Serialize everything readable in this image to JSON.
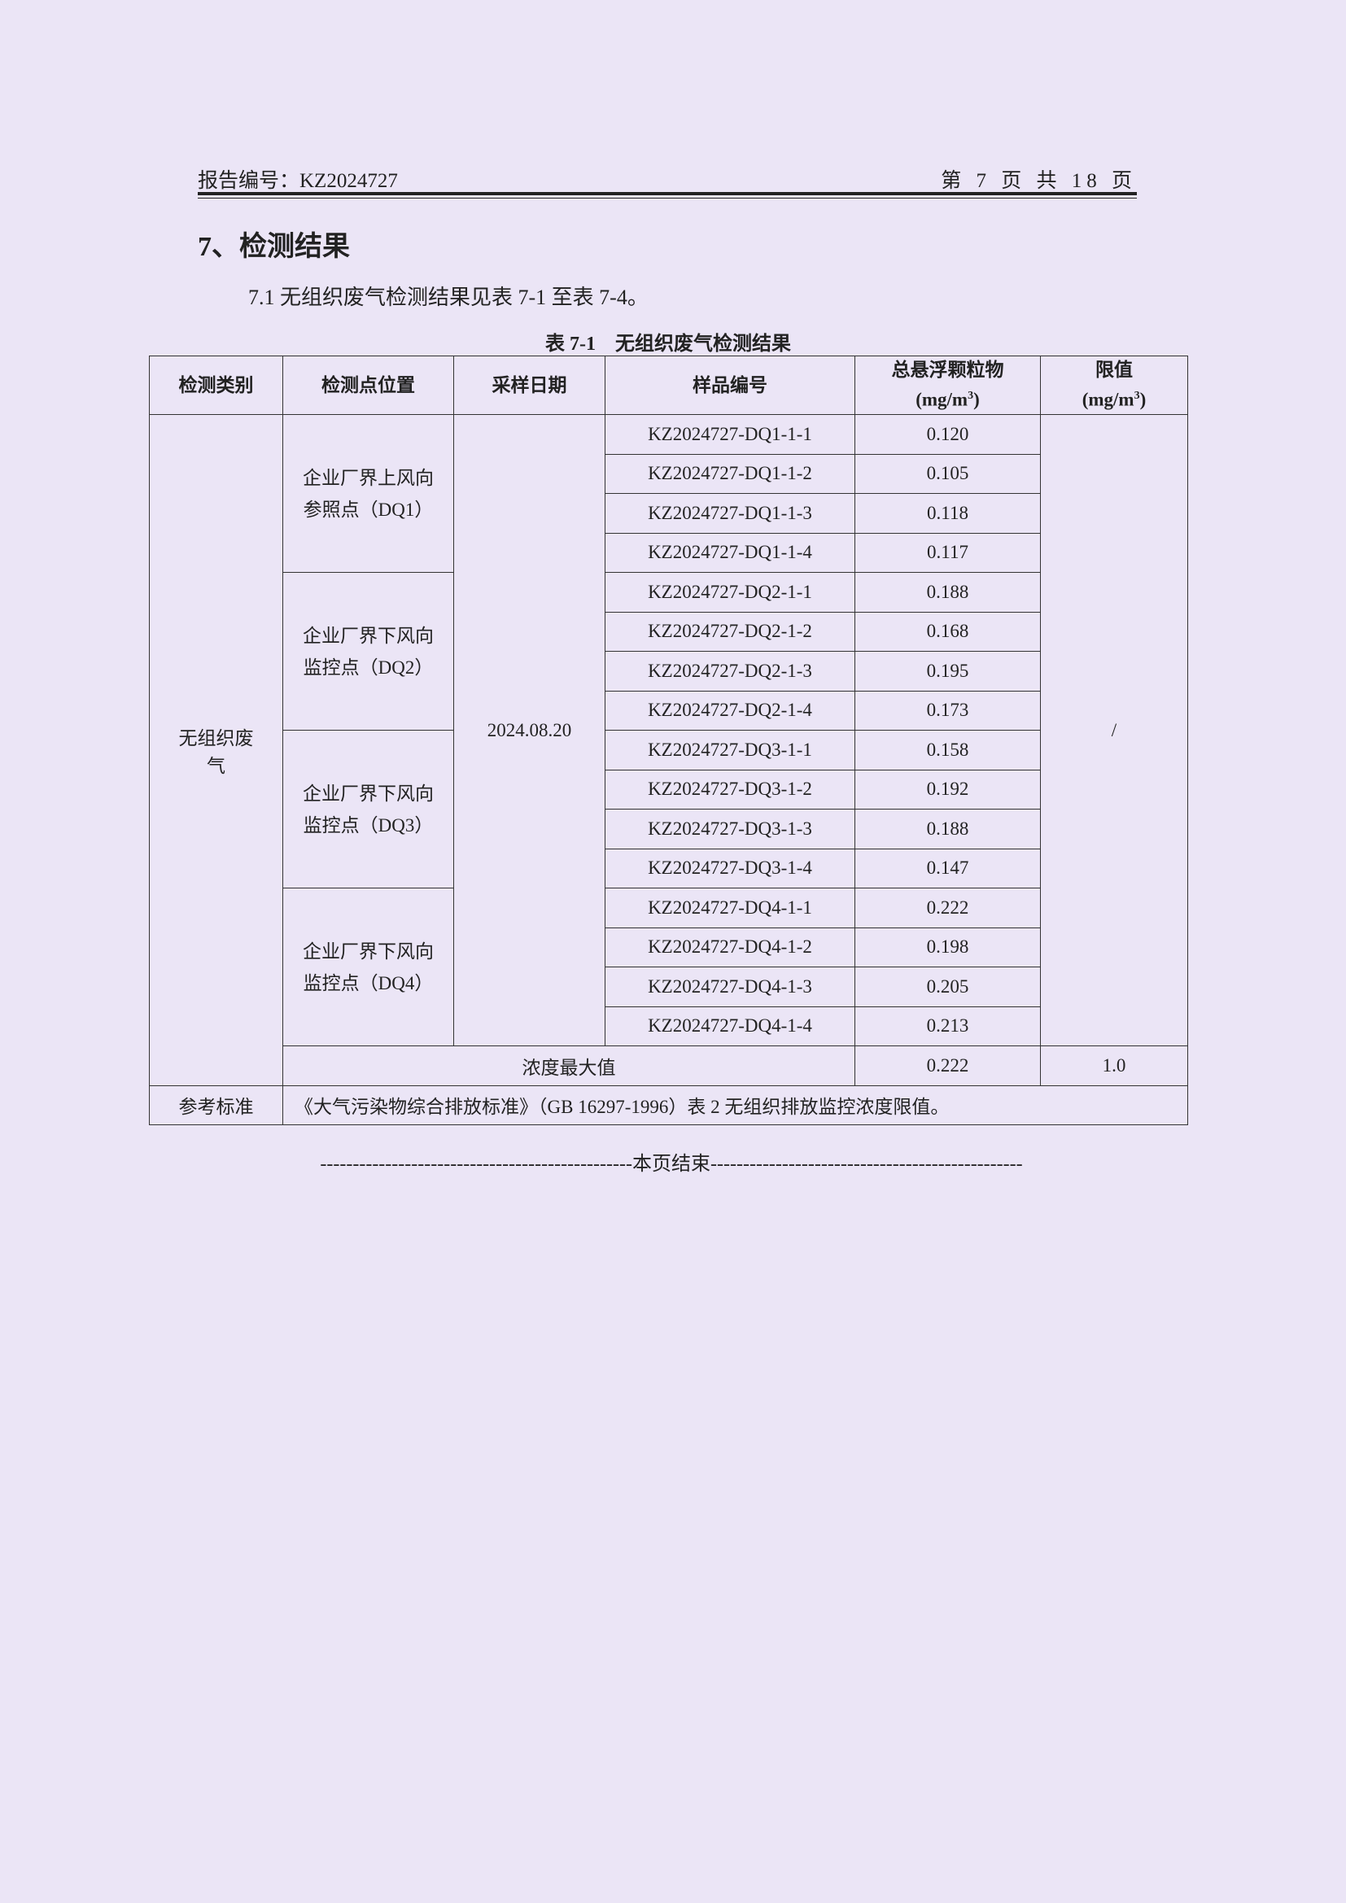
{
  "header": {
    "report_no": "报告编号：KZ2024727",
    "page": "第 7 页 共 18 页"
  },
  "section_title": "7、检测结果",
  "paragraph": "7.1 无组织废气检测结果见表 7-1 至表 7-4。",
  "table": {
    "caption": "表 7-1　无组织废气检测结果",
    "headers": [
      "检测类别",
      "检测点位置",
      "采样日期",
      "样品编号",
      "总悬浮颗粒物",
      "限值"
    ],
    "unit": "(mg/m",
    "unit_sup": "3",
    "unit_close": ")",
    "category": "无组织废气",
    "date": "2024.08.20",
    "limit_cell": "/",
    "groups": [
      {
        "location": "企业厂界上风向参照点（DQ1）",
        "samples": [
          [
            "KZ2024727-DQ1-1-1",
            "0.120"
          ],
          [
            "KZ2024727-DQ1-1-2",
            "0.105"
          ],
          [
            "KZ2024727-DQ1-1-3",
            "0.118"
          ],
          [
            "KZ2024727-DQ1-1-4",
            "0.117"
          ]
        ]
      },
      {
        "location": "企业厂界下风向监控点（DQ2）",
        "samples": [
          [
            "KZ2024727-DQ2-1-1",
            "0.188"
          ],
          [
            "KZ2024727-DQ2-1-2",
            "0.168"
          ],
          [
            "KZ2024727-DQ2-1-3",
            "0.195"
          ],
          [
            "KZ2024727-DQ2-1-4",
            "0.173"
          ]
        ]
      },
      {
        "location": "企业厂界下风向监控点（DQ3）",
        "samples": [
          [
            "KZ2024727-DQ3-1-1",
            "0.158"
          ],
          [
            "KZ2024727-DQ3-1-2",
            "0.192"
          ],
          [
            "KZ2024727-DQ3-1-3",
            "0.188"
          ],
          [
            "KZ2024727-DQ3-1-4",
            "0.147"
          ]
        ]
      },
      {
        "location": "企业厂界下风向监控点（DQ4）",
        "samples": [
          [
            "KZ2024727-DQ4-1-1",
            "0.222"
          ],
          [
            "KZ2024727-DQ4-1-2",
            "0.198"
          ],
          [
            "KZ2024727-DQ4-1-3",
            "0.205"
          ],
          [
            "KZ2024727-DQ4-1-4",
            "0.213"
          ]
        ]
      }
    ],
    "max_label": "浓度最大值",
    "max_value": "0.222",
    "max_limit": "1.0",
    "ref_label": "参考标准",
    "ref_text": "《大气污染物综合排放标准》（GB 16297-1996）表 2 无组织排放监控浓度限值。"
  },
  "footer": "本页结束"
}
